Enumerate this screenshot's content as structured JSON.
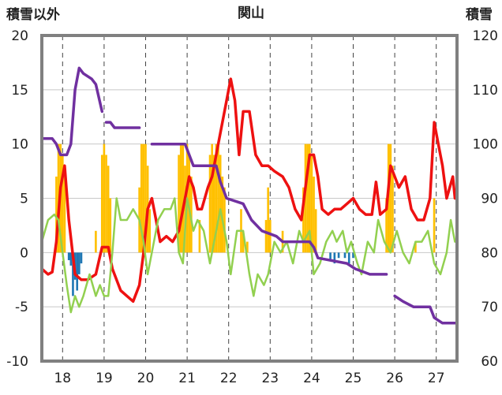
{
  "chart_data": {
    "type": "line",
    "title": "関山",
    "ylabel_left": "積雪以外",
    "ylabel_right": "積雪",
    "x_ticks": [
      "18",
      "19",
      "20",
      "21",
      "22",
      "23",
      "24",
      "25",
      "26",
      "27"
    ],
    "y_left_ticks": [
      "20",
      "15",
      "10",
      "5",
      "0",
      "-5",
      "-10"
    ],
    "y_right_ticks": [
      "120",
      "110",
      "100",
      "90",
      "80",
      "70",
      "60"
    ],
    "xlim": [
      17.5,
      27.5
    ],
    "ylim_left": [
      -10,
      20
    ],
    "ylim_right": [
      60,
      120
    ],
    "grid": true,
    "colors": {
      "precip": "#ffc000",
      "negative_bars": "#1f77b4",
      "red": "#ee1111",
      "green": "#92d050",
      "purple": "#7030a0"
    },
    "series": [
      {
        "axis": "left",
        "style": "bar",
        "color": "#ffc000",
        "values": [
          [
            17.85,
            7
          ],
          [
            17.9,
            10
          ],
          [
            17.95,
            10
          ],
          [
            18.0,
            9
          ],
          [
            18.05,
            7
          ],
          [
            18.8,
            2
          ],
          [
            18.95,
            9
          ],
          [
            19.0,
            10
          ],
          [
            19.05,
            9
          ],
          [
            19.1,
            8
          ],
          [
            19.15,
            5
          ],
          [
            19.85,
            6
          ],
          [
            19.9,
            10
          ],
          [
            19.95,
            10
          ],
          [
            20.0,
            10
          ],
          [
            20.05,
            8
          ],
          [
            20.1,
            4
          ],
          [
            20.8,
            9
          ],
          [
            20.85,
            10
          ],
          [
            20.9,
            10
          ],
          [
            20.95,
            8
          ],
          [
            21.0,
            10
          ],
          [
            21.05,
            9
          ],
          [
            21.1,
            7
          ],
          [
            21.3,
            3
          ],
          [
            21.55,
            9
          ],
          [
            21.6,
            10
          ],
          [
            21.65,
            9
          ],
          [
            21.7,
            10
          ],
          [
            21.75,
            10
          ],
          [
            21.8,
            9
          ],
          [
            21.85,
            7
          ],
          [
            21.9,
            6
          ],
          [
            22.3,
            4
          ],
          [
            22.35,
            2
          ],
          [
            22.45,
            1
          ],
          [
            22.9,
            3
          ],
          [
            22.95,
            6
          ],
          [
            23.0,
            3
          ],
          [
            23.3,
            2
          ],
          [
            23.8,
            6
          ],
          [
            23.85,
            10
          ],
          [
            23.9,
            10
          ],
          [
            23.95,
            10
          ],
          [
            24.0,
            9
          ],
          [
            24.05,
            7
          ],
          [
            24.1,
            4
          ],
          [
            25.8,
            5
          ],
          [
            25.85,
            10
          ],
          [
            25.9,
            10
          ],
          [
            25.95,
            8
          ],
          [
            26.5,
            1
          ],
          [
            26.95,
            5
          ]
        ]
      },
      {
        "axis": "left",
        "style": "bar",
        "color": "#1f77b4",
        "values": [
          [
            18.15,
            -0.7
          ],
          [
            18.2,
            -1.2
          ],
          [
            18.25,
            -4
          ],
          [
            18.3,
            -2.5
          ],
          [
            18.35,
            -3.5
          ],
          [
            18.4,
            -2
          ],
          [
            18.45,
            -1
          ],
          [
            24.45,
            -0.6
          ],
          [
            24.55,
            -1
          ],
          [
            24.65,
            -0.5
          ],
          [
            24.8,
            -0.5
          ],
          [
            24.9,
            -1
          ],
          [
            25.0,
            -0.5
          ]
        ]
      },
      {
        "axis": "left",
        "style": "line",
        "color": "#ee1111",
        "values": [
          [
            17.5,
            -1.5
          ],
          [
            17.65,
            -2
          ],
          [
            17.75,
            -1.8
          ],
          [
            17.85,
            1
          ],
          [
            17.95,
            6
          ],
          [
            18.05,
            8
          ],
          [
            18.15,
            3
          ],
          [
            18.3,
            -2
          ],
          [
            18.45,
            -2.5
          ],
          [
            18.6,
            -2.5
          ],
          [
            18.8,
            -2
          ],
          [
            18.95,
            0.5
          ],
          [
            19.1,
            0.5
          ],
          [
            19.2,
            -1.5
          ],
          [
            19.4,
            -3.5
          ],
          [
            19.55,
            -4
          ],
          [
            19.7,
            -4.5
          ],
          [
            19.85,
            -3
          ],
          [
            19.95,
            0
          ],
          [
            20.05,
            4
          ],
          [
            20.15,
            5
          ],
          [
            20.25,
            3
          ],
          [
            20.35,
            1
          ],
          [
            20.5,
            1.5
          ],
          [
            20.65,
            1
          ],
          [
            20.8,
            2
          ],
          [
            20.95,
            5
          ],
          [
            21.05,
            7
          ],
          [
            21.15,
            6
          ],
          [
            21.25,
            4
          ],
          [
            21.35,
            4
          ],
          [
            21.5,
            6
          ],
          [
            21.6,
            7
          ],
          [
            21.75,
            10
          ],
          [
            21.9,
            13
          ],
          [
            22.05,
            16
          ],
          [
            22.15,
            14
          ],
          [
            22.25,
            9
          ],
          [
            22.35,
            13
          ],
          [
            22.5,
            13
          ],
          [
            22.65,
            9
          ],
          [
            22.8,
            8
          ],
          [
            22.95,
            8
          ],
          [
            23.1,
            7.5
          ],
          [
            23.3,
            7
          ],
          [
            23.45,
            6
          ],
          [
            23.6,
            4
          ],
          [
            23.75,
            3
          ],
          [
            23.85,
            6
          ],
          [
            23.95,
            9
          ],
          [
            24.05,
            9
          ],
          [
            24.15,
            7
          ],
          [
            24.25,
            4
          ],
          [
            24.4,
            3.5
          ],
          [
            24.55,
            4
          ],
          [
            24.7,
            4
          ],
          [
            24.85,
            4.5
          ],
          [
            25.0,
            5
          ],
          [
            25.15,
            4
          ],
          [
            25.3,
            3.5
          ],
          [
            25.45,
            3.5
          ],
          [
            25.55,
            6.5
          ],
          [
            25.65,
            3.5
          ],
          [
            25.8,
            4
          ],
          [
            25.9,
            8
          ],
          [
            26.0,
            7
          ],
          [
            26.1,
            6
          ],
          [
            26.25,
            7
          ],
          [
            26.4,
            4
          ],
          [
            26.55,
            3
          ],
          [
            26.7,
            3
          ],
          [
            26.85,
            5
          ],
          [
            26.95,
            12
          ],
          [
            27.05,
            10
          ],
          [
            27.15,
            8
          ],
          [
            27.25,
            5
          ],
          [
            27.4,
            7
          ],
          [
            27.45,
            5
          ]
        ]
      },
      {
        "axis": "left",
        "style": "line",
        "color": "#92d050",
        "values": [
          [
            17.5,
            1
          ],
          [
            17.65,
            3
          ],
          [
            17.8,
            3.5
          ],
          [
            17.9,
            3
          ],
          [
            18.0,
            0
          ],
          [
            18.1,
            -3
          ],
          [
            18.2,
            -5.5
          ],
          [
            18.3,
            -4
          ],
          [
            18.4,
            -5
          ],
          [
            18.5,
            -4
          ],
          [
            18.65,
            -2
          ],
          [
            18.8,
            -4
          ],
          [
            18.9,
            -3
          ],
          [
            19.0,
            -4
          ],
          [
            19.1,
            -4
          ],
          [
            19.2,
            0
          ],
          [
            19.3,
            5
          ],
          [
            19.4,
            3
          ],
          [
            19.55,
            3
          ],
          [
            19.7,
            4
          ],
          [
            19.85,
            3
          ],
          [
            19.95,
            1
          ],
          [
            20.05,
            -2
          ],
          [
            20.15,
            0
          ],
          [
            20.3,
            3
          ],
          [
            20.45,
            4
          ],
          [
            20.6,
            4
          ],
          [
            20.7,
            5
          ],
          [
            20.8,
            0
          ],
          [
            20.9,
            -1
          ],
          [
            21.0,
            5
          ],
          [
            21.15,
            2
          ],
          [
            21.25,
            3
          ],
          [
            21.4,
            2
          ],
          [
            21.55,
            -1
          ],
          [
            21.7,
            2
          ],
          [
            21.8,
            4
          ],
          [
            21.95,
            1
          ],
          [
            22.05,
            -2
          ],
          [
            22.2,
            2
          ],
          [
            22.35,
            2
          ],
          [
            22.5,
            -2
          ],
          [
            22.6,
            -4
          ],
          [
            22.7,
            -2
          ],
          [
            22.85,
            -3
          ],
          [
            22.95,
            -2
          ],
          [
            23.1,
            1
          ],
          [
            23.25,
            0
          ],
          [
            23.4,
            1
          ],
          [
            23.55,
            -1
          ],
          [
            23.7,
            2
          ],
          [
            23.8,
            1
          ],
          [
            23.95,
            2
          ],
          [
            24.05,
            -2
          ],
          [
            24.2,
            -1
          ],
          [
            24.35,
            1
          ],
          [
            24.5,
            2
          ],
          [
            24.6,
            1
          ],
          [
            24.75,
            2
          ],
          [
            24.85,
            0
          ],
          [
            24.95,
            1
          ],
          [
            25.1,
            -1
          ],
          [
            25.2,
            -2
          ],
          [
            25.35,
            1
          ],
          [
            25.5,
            0
          ],
          [
            25.6,
            3
          ],
          [
            25.75,
            1
          ],
          [
            25.9,
            0
          ],
          [
            26.05,
            2
          ],
          [
            26.2,
            0
          ],
          [
            26.35,
            -1
          ],
          [
            26.5,
            1
          ],
          [
            26.65,
            1
          ],
          [
            26.8,
            2
          ],
          [
            26.95,
            -1
          ],
          [
            27.1,
            -2
          ],
          [
            27.25,
            0
          ],
          [
            27.35,
            3
          ],
          [
            27.45,
            1
          ]
        ]
      },
      {
        "axis": "right",
        "style": "line",
        "color": "#7030a0",
        "values": [
          [
            17.5,
            101
          ],
          [
            17.75,
            101
          ],
          [
            17.85,
            100
          ],
          [
            17.95,
            98
          ],
          [
            18.1,
            98
          ],
          [
            18.2,
            100
          ],
          [
            18.3,
            110
          ],
          [
            18.4,
            114
          ],
          [
            18.5,
            113
          ],
          [
            18.7,
            112
          ],
          [
            18.8,
            111
          ],
          [
            18.95,
            106
          ],
          null,
          [
            19.05,
            104
          ],
          [
            19.15,
            104
          ],
          [
            19.25,
            103
          ],
          [
            19.85,
            103
          ],
          null,
          [
            20.15,
            100
          ],
          [
            20.95,
            100
          ],
          [
            21.05,
            98
          ],
          [
            21.15,
            96
          ],
          [
            21.7,
            96
          ],
          [
            21.8,
            93
          ],
          [
            21.95,
            90
          ],
          [
            22.35,
            89
          ],
          [
            22.55,
            86
          ],
          [
            22.8,
            84
          ],
          [
            23.15,
            83
          ],
          [
            23.3,
            82
          ],
          [
            23.95,
            82
          ],
          [
            24.05,
            81
          ],
          [
            24.15,
            79
          ],
          [
            24.85,
            78
          ],
          [
            25.05,
            77
          ],
          [
            25.4,
            76
          ],
          [
            25.8,
            76
          ],
          null,
          [
            26.0,
            72
          ],
          [
            26.2,
            71
          ],
          [
            26.45,
            70
          ],
          [
            26.85,
            70
          ],
          [
            26.95,
            68
          ],
          [
            27.15,
            67
          ],
          [
            27.45,
            67
          ]
        ]
      }
    ]
  }
}
